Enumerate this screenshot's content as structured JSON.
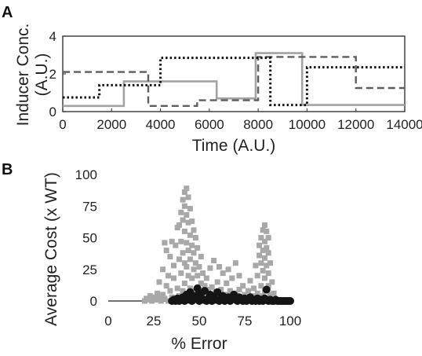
{
  "colors": {
    "axis": "#444444",
    "solid_series": "#a3a3a3",
    "dashed_series": "#5e5e5e",
    "dotted_series": "#111111",
    "gray_markers": "#a8a8a8",
    "black_markers": "#141414"
  },
  "chart_data": [
    {
      "panel_label": "A",
      "type": "line",
      "style": "step",
      "xlabel": "Time (A.U.)",
      "ylabel_line1": "Inducer Conc.",
      "ylabel_line2": "(A.U.)",
      "xlim": [
        0,
        14000
      ],
      "ylim": [
        0,
        4
      ],
      "xticks": [
        0,
        2000,
        4000,
        6000,
        8000,
        10000,
        12000,
        14000
      ],
      "yticks": [
        0,
        2,
        4
      ],
      "grid": false,
      "legend": "none",
      "series": [
        {
          "line_style": "solid",
          "color_key": "solid_series",
          "x": [
            0,
            2500,
            2500,
            6300,
            6300,
            7900,
            7900,
            9800,
            9800,
            14000
          ],
          "y": [
            0.3,
            0.3,
            1.6,
            1.6,
            0.7,
            0.7,
            3.1,
            3.1,
            0.35,
            0.35
          ]
        },
        {
          "line_style": "dashed",
          "color_key": "dashed_series",
          "x": [
            0,
            3500,
            3500,
            5500,
            5500,
            8000,
            8000,
            12000,
            12000,
            14000
          ],
          "y": [
            2.1,
            2.1,
            0.3,
            0.3,
            0.6,
            0.6,
            2.9,
            2.9,
            1.25,
            1.25
          ]
        },
        {
          "line_style": "dotted",
          "color_key": "dotted_series",
          "x": [
            0,
            1500,
            1500,
            4000,
            4000,
            8500,
            8500,
            10000,
            10000,
            14000
          ],
          "y": [
            0.75,
            0.75,
            1.4,
            1.4,
            2.85,
            2.85,
            0.35,
            0.35,
            2.35,
            2.35
          ]
        }
      ]
    },
    {
      "panel_label": "B",
      "type": "scatter",
      "xlabel": "% Error",
      "ylabel": "Average Cost (x WT)",
      "xlim": [
        0,
        100
      ],
      "ylim": [
        0,
        100
      ],
      "xticks": [
        0,
        25,
        50,
        75,
        100
      ],
      "yticks": [
        0,
        25,
        50,
        75,
        100
      ],
      "grid": false,
      "legend": "none",
      "series": [
        {
          "marker": "square",
          "color_key": "gray_markers",
          "points": [
            [
              20,
              0
            ],
            [
              21,
              2
            ],
            [
              22,
              1
            ],
            [
              23,
              4
            ],
            [
              24,
              0
            ],
            [
              25,
              3
            ],
            [
              26,
              1
            ],
            [
              27,
              6
            ],
            [
              28,
              2
            ],
            [
              28,
              15
            ],
            [
              29,
              0
            ],
            [
              30,
              5
            ],
            [
              30,
              25
            ],
            [
              31,
              2
            ],
            [
              31,
              46
            ],
            [
              32,
              12
            ],
            [
              32,
              40
            ],
            [
              33,
              0
            ],
            [
              33,
              20
            ],
            [
              34,
              8
            ],
            [
              34,
              35
            ],
            [
              35,
              3
            ],
            [
              35,
              47
            ],
            [
              36,
              18
            ],
            [
              36,
              28
            ],
            [
              37,
              1
            ],
            [
              37,
              44
            ],
            [
              38,
              10
            ],
            [
              38,
              58
            ],
            [
              39,
              4
            ],
            [
              39,
              33
            ],
            [
              39,
              60
            ],
            [
              40,
              0
            ],
            [
              40,
              22
            ],
            [
              40,
              47
            ],
            [
              40,
              70
            ],
            [
              41,
              8
            ],
            [
              41,
              38
            ],
            [
              41,
              64
            ],
            [
              41,
              80
            ],
            [
              42,
              2
            ],
            [
              42,
              14
            ],
            [
              42,
              30
            ],
            [
              42,
              55
            ],
            [
              42,
              75
            ],
            [
              42,
              86
            ],
            [
              43,
              5
            ],
            [
              43,
              27
            ],
            [
              43,
              46
            ],
            [
              43,
              68
            ],
            [
              43,
              89
            ],
            [
              44,
              1
            ],
            [
              44,
              20
            ],
            [
              44,
              40
            ],
            [
              44,
              62
            ],
            [
              44,
              82
            ],
            [
              45,
              10
            ],
            [
              45,
              33
            ],
            [
              45,
              52
            ],
            [
              45,
              73
            ],
            [
              46,
              3
            ],
            [
              46,
              18
            ],
            [
              46,
              44
            ],
            [
              46,
              63
            ],
            [
              47,
              0
            ],
            [
              47,
              25
            ],
            [
              47,
              38
            ],
            [
              47,
              56
            ],
            [
              48,
              8
            ],
            [
              48,
              30
            ],
            [
              48,
              50
            ],
            [
              49,
              2
            ],
            [
              49,
              20
            ],
            [
              49,
              42
            ],
            [
              50,
              6
            ],
            [
              50,
              27
            ],
            [
              51,
              1
            ],
            [
              51,
              14
            ],
            [
              51,
              35
            ],
            [
              52,
              4
            ],
            [
              52,
              22
            ],
            [
              53,
              0
            ],
            [
              53,
              12
            ],
            [
              54,
              6
            ],
            [
              54,
              18
            ],
            [
              55,
              2
            ],
            [
              55,
              9
            ],
            [
              56,
              4
            ],
            [
              56,
              26
            ],
            [
              57,
              0
            ],
            [
              57,
              11
            ],
            [
              58,
              3
            ],
            [
              58,
              32
            ],
            [
              59,
              7
            ],
            [
              60,
              1
            ],
            [
              60,
              15
            ],
            [
              61,
              4
            ],
            [
              61,
              27
            ],
            [
              62,
              0
            ],
            [
              62,
              9
            ],
            [
              63,
              2
            ],
            [
              63,
              22
            ],
            [
              64,
              5
            ],
            [
              65,
              1
            ],
            [
              65,
              14
            ],
            [
              66,
              3
            ],
            [
              66,
              25
            ],
            [
              67,
              0
            ],
            [
              67,
              8
            ],
            [
              68,
              4
            ],
            [
              68,
              18
            ],
            [
              69,
              1
            ],
            [
              70,
              6
            ],
            [
              70,
              30
            ],
            [
              71,
              2
            ],
            [
              72,
              9
            ],
            [
              72,
              20
            ],
            [
              73,
              3
            ],
            [
              74,
              0
            ],
            [
              74,
              12
            ],
            [
              75,
              5
            ],
            [
              76,
              2
            ],
            [
              77,
              8
            ],
            [
              78,
              1
            ],
            [
              78,
              16
            ],
            [
              79,
              4
            ],
            [
              80,
              0
            ],
            [
              80,
              10
            ],
            [
              81,
              3
            ],
            [
              81,
              28
            ],
            [
              82,
              6
            ],
            [
              82,
              20
            ],
            [
              83,
              2
            ],
            [
              83,
              36
            ],
            [
              83,
              44
            ],
            [
              84,
              12
            ],
            [
              84,
              30
            ],
            [
              84,
              50
            ],
            [
              85,
              4
            ],
            [
              85,
              24
            ],
            [
              85,
              40
            ],
            [
              85,
              56
            ],
            [
              86,
              8
            ],
            [
              86,
              18
            ],
            [
              86,
              34
            ],
            [
              86,
              47
            ],
            [
              86,
              60
            ],
            [
              87,
              2
            ],
            [
              87,
              28
            ],
            [
              87,
              42
            ],
            [
              87,
              55
            ],
            [
              88,
              12
            ],
            [
              88,
              22
            ],
            [
              88,
              38
            ],
            [
              88,
              50
            ],
            [
              89,
              5
            ],
            [
              89,
              30
            ],
            [
              90,
              1
            ],
            [
              90,
              15
            ],
            [
              91,
              6
            ]
          ]
        },
        {
          "marker": "circle",
          "color_key": "black_markers",
          "points": [
            [
              35,
              0
            ],
            [
              36,
              1
            ],
            [
              37,
              0
            ],
            [
              38,
              2
            ],
            [
              39,
              0
            ],
            [
              40,
              1
            ],
            [
              41,
              3
            ],
            [
              42,
              0
            ],
            [
              43,
              5
            ],
            [
              44,
              1
            ],
            [
              45,
              7
            ],
            [
              46,
              0
            ],
            [
              47,
              4
            ],
            [
              48,
              2
            ],
            [
              49,
              10
            ],
            [
              50,
              0
            ],
            [
              50,
              6
            ],
            [
              51,
              3
            ],
            [
              52,
              1
            ],
            [
              53,
              8
            ],
            [
              54,
              0
            ],
            [
              55,
              2
            ],
            [
              56,
              5
            ],
            [
              57,
              0
            ],
            [
              58,
              3
            ],
            [
              59,
              1
            ],
            [
              60,
              7
            ],
            [
              61,
              0
            ],
            [
              62,
              2
            ],
            [
              63,
              4
            ],
            [
              64,
              0
            ],
            [
              65,
              1
            ],
            [
              66,
              3
            ],
            [
              67,
              0
            ],
            [
              68,
              2
            ],
            [
              69,
              5
            ],
            [
              70,
              1
            ],
            [
              71,
              0
            ],
            [
              72,
              3
            ],
            [
              73,
              1
            ],
            [
              74,
              0
            ],
            [
              75,
              2
            ],
            [
              76,
              0
            ],
            [
              77,
              1
            ],
            [
              78,
              3
            ],
            [
              79,
              0
            ],
            [
              80,
              1
            ],
            [
              81,
              0
            ],
            [
              82,
              2
            ],
            [
              83,
              0
            ],
            [
              84,
              1
            ],
            [
              85,
              0
            ],
            [
              86,
              2
            ],
            [
              87,
              9
            ],
            [
              88,
              0
            ],
            [
              89,
              1
            ],
            [
              90,
              0
            ],
            [
              91,
              0
            ],
            [
              92,
              1
            ],
            [
              93,
              0
            ],
            [
              94,
              0
            ],
            [
              95,
              0
            ],
            [
              96,
              0
            ],
            [
              97,
              0
            ],
            [
              98,
              0
            ],
            [
              99,
              0
            ],
            [
              100,
              0
            ]
          ]
        }
      ]
    }
  ]
}
